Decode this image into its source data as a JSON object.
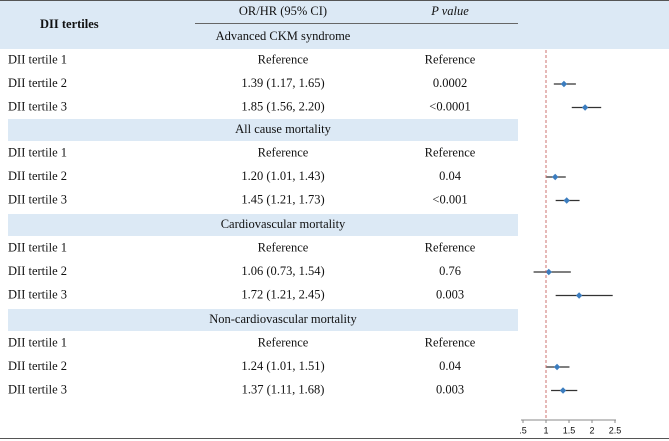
{
  "chart_data": {
    "type": "forest",
    "headers": {
      "group": "DII tertiles",
      "estimate": "OR/HR (95% CI)",
      "p": "P value"
    },
    "sections": [
      {
        "title": "Advanced CKM syndrome",
        "rows": [
          {
            "label": "DII tertile 1",
            "text": "Reference",
            "p": "Reference"
          },
          {
            "label": "DII tertile 2",
            "text": "1.39 (1.17, 1.65)",
            "p": "0.0002",
            "value": 1.39,
            "lower": 1.17,
            "upper": 1.65
          },
          {
            "label": "DII tertile 3",
            "text": "1.85 (1.56, 2.20)",
            "p": "<0.0001",
            "value": 1.85,
            "lower": 1.56,
            "upper": 2.2
          }
        ]
      },
      {
        "title": "All cause mortality",
        "rows": [
          {
            "label": "DII tertile 1",
            "text": "Reference",
            "p": "Reference"
          },
          {
            "label": "DII tertile 2",
            "text": "1.20 (1.01, 1.43)",
            "p": "0.04",
            "value": 1.2,
            "lower": 1.01,
            "upper": 1.43
          },
          {
            "label": "DII tertile 3",
            "text": "1.45 (1.21, 1.73)",
            "p": "<0.001",
            "value": 1.45,
            "lower": 1.21,
            "upper": 1.73
          }
        ]
      },
      {
        "title": "Cardiovascular mortality",
        "rows": [
          {
            "label": "DII tertile 1",
            "text": "Reference",
            "p": "Reference"
          },
          {
            "label": "DII tertile 2",
            "text": "1.06 (0.73, 1.54)",
            "p": "0.76",
            "value": 1.06,
            "lower": 0.73,
            "upper": 1.54
          },
          {
            "label": "DII tertile 3",
            "text": "1.72 (1.21, 2.45)",
            "p": "0.003",
            "value": 1.72,
            "lower": 1.21,
            "upper": 2.45
          }
        ]
      },
      {
        "title": "Non-cardiovascular mortality",
        "rows": [
          {
            "label": "DII tertile 1",
            "text": "Reference",
            "p": "Reference"
          },
          {
            "label": "DII tertile 2",
            "text": "1.24 (1.01, 1.51)",
            "p": "0.04",
            "value": 1.24,
            "lower": 1.01,
            "upper": 1.51
          },
          {
            "label": "DII tertile 3",
            "text": "1.37 (1.11, 1.68)",
            "p": "0.003",
            "value": 1.37,
            "lower": 1.11,
            "upper": 1.68
          }
        ]
      }
    ],
    "xlim": [
      0.5,
      2.5
    ],
    "xticks": [
      {
        "value": 0.5,
        "label": ".5"
      },
      1,
      1.5,
      2,
      2.5
    ],
    "reference_line": 1,
    "color": "#3c7dbf"
  }
}
